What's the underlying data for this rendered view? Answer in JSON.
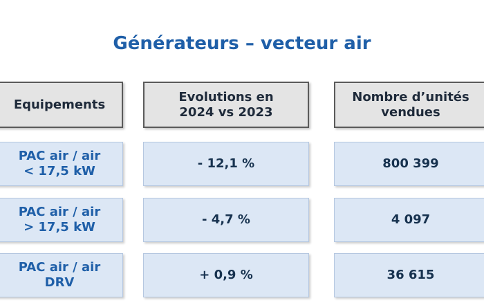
{
  "title": "Générateurs – vecteur air",
  "table": {
    "headers": [
      [
        "Equipements"
      ],
      [
        "Evolutions en",
        "2024 vs 2023"
      ],
      [
        "Nombre d’unités",
        "vendues"
      ]
    ],
    "rows": [
      [
        [
          "PAC air / air",
          "< 17,5 kW"
        ],
        [
          "- 12,1 %"
        ],
        [
          "800 399"
        ]
      ],
      [
        [
          "PAC air / air",
          "> 17,5 kW"
        ],
        [
          "- 4,7 %"
        ],
        [
          "4 097"
        ]
      ],
      [
        [
          "PAC air / air",
          "DRV"
        ],
        [
          "+ 0,9 %"
        ],
        [
          "36 615"
        ]
      ]
    ]
  }
}
